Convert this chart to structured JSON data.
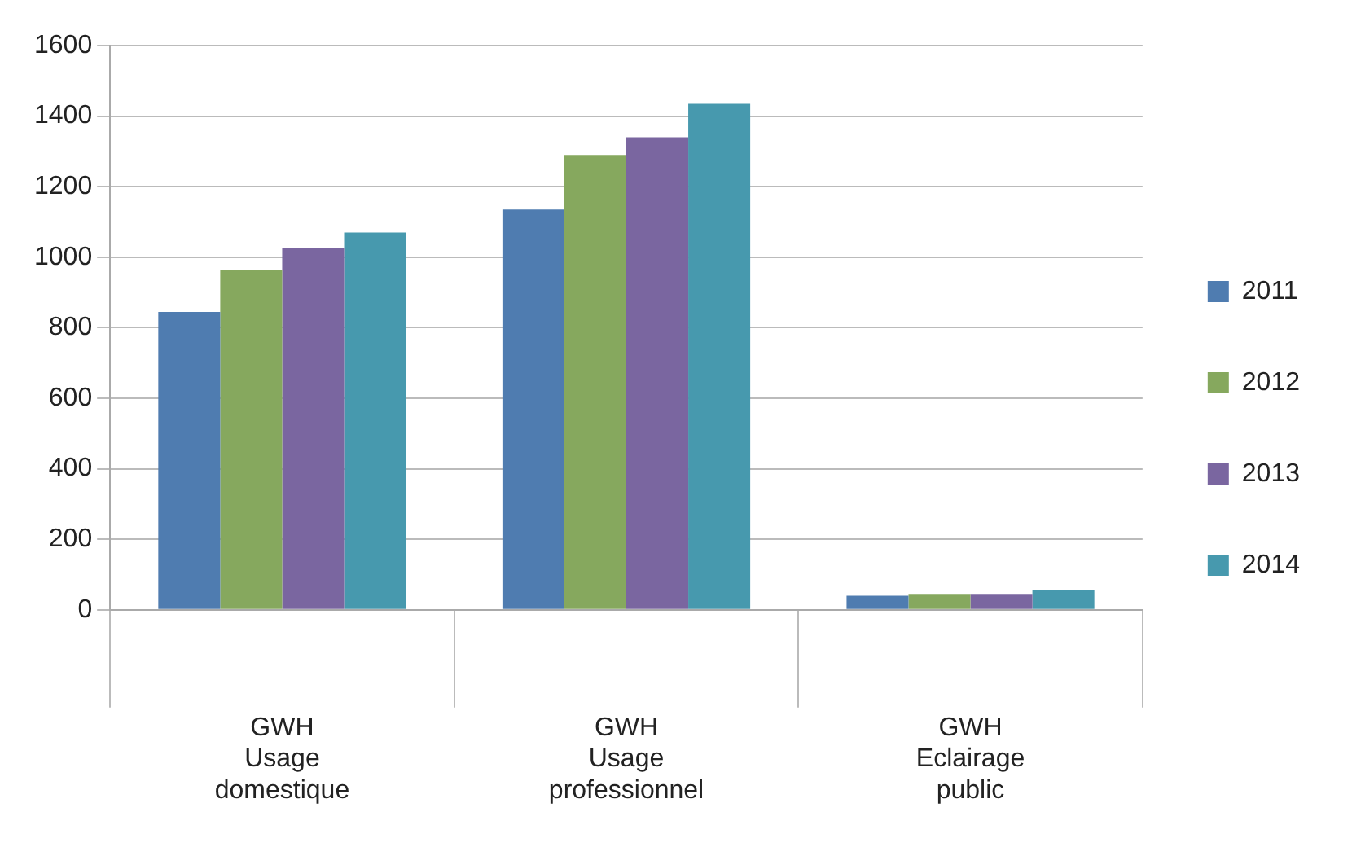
{
  "chart_data": {
    "type": "bar",
    "categories": [
      "GWH\nUsage\ndomestique",
      "GWH\nUsage\nprofessionnel",
      "GWH\nEclairage\npublic"
    ],
    "series": [
      {
        "name": "2011",
        "color": "#4f7cb0",
        "values": [
          845,
          1135,
          40
        ]
      },
      {
        "name": "2012",
        "color": "#86a85e",
        "values": [
          965,
          1290,
          45
        ]
      },
      {
        "name": "2013",
        "color": "#7a66a0",
        "values": [
          1025,
          1340,
          45
        ]
      },
      {
        "name": "2014",
        "color": "#4799ae",
        "values": [
          1070,
          1435,
          55
        ]
      }
    ],
    "ylim": [
      0,
      1600
    ],
    "yticks": [
      0,
      200,
      400,
      600,
      800,
      1000,
      1200,
      1400,
      1600
    ],
    "grid": "y",
    "legend": "right"
  }
}
